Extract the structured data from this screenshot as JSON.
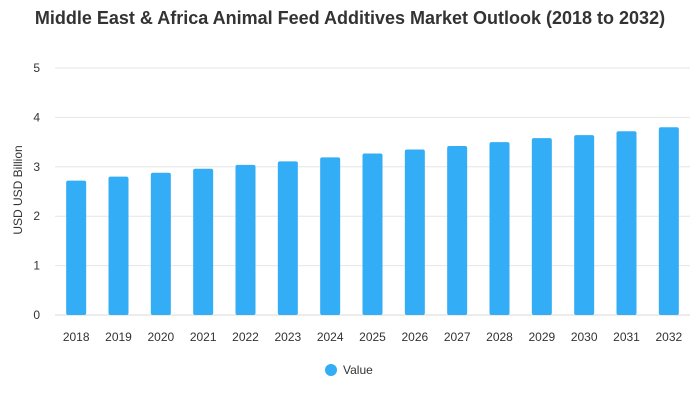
{
  "chart_data": {
    "type": "bar",
    "title": "Middle East & Africa Animal Feed Additives Market Outlook (2018 to 2032)",
    "xlabel": "",
    "ylabel": "USD USD Billion",
    "ylim": [
      0,
      5
    ],
    "yticks": [
      0,
      1,
      2,
      3,
      4,
      5
    ],
    "grid": true,
    "legend_position": "bottom",
    "categories": [
      "2018",
      "2019",
      "2020",
      "2021",
      "2022",
      "2023",
      "2024",
      "2025",
      "2026",
      "2027",
      "2028",
      "2029",
      "2030",
      "2031",
      "2032"
    ],
    "series": [
      {
        "name": "Value",
        "color": "#33adf5",
        "values": [
          2.72,
          2.8,
          2.88,
          2.96,
          3.04,
          3.11,
          3.19,
          3.27,
          3.35,
          3.42,
          3.5,
          3.58,
          3.64,
          3.72,
          3.8
        ]
      }
    ]
  }
}
